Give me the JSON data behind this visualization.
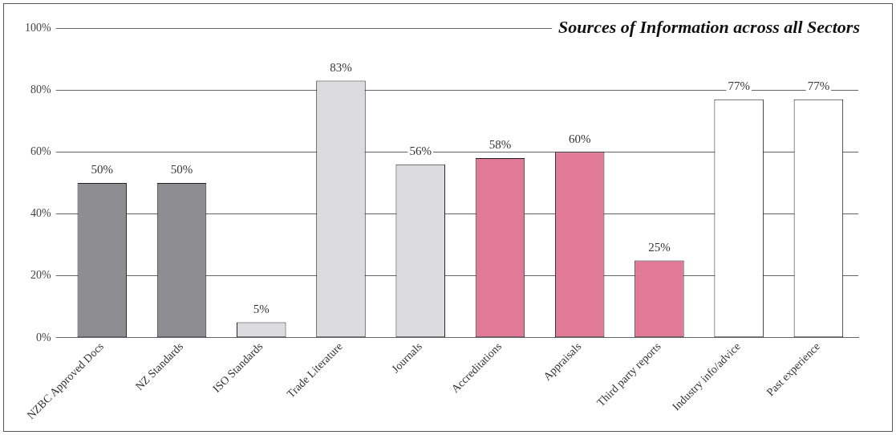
{
  "chart_data": {
    "type": "bar",
    "title": "Sources of Information across all Sectors",
    "categories": [
      "NZBC Approved Docs",
      "NZ Standards",
      "ISO Standards",
      "Trade Literature",
      "Journals",
      "Accreditations",
      "Appraisals",
      "Third party reports",
      "Industry info/advice",
      "Past experience"
    ],
    "values": [
      50,
      50,
      5,
      83,
      56,
      58,
      60,
      25,
      77,
      77
    ],
    "colors": [
      "#8e8e92",
      "#8e8e92",
      "#dcdcde",
      "#dcdcde",
      "#dcdcde",
      "#e07a96",
      "#e07a96",
      "#e07a96",
      "#ffffff",
      "#ffffff"
    ],
    "value_labels": [
      "50%",
      "50%",
      "5%",
      "83%",
      "56%",
      "58%",
      "60%",
      "25%",
      "77%",
      "77%"
    ],
    "ylim": [
      0,
      100
    ],
    "yticks": [
      {
        "value": 0,
        "label": "0%"
      },
      {
        "value": 20,
        "label": "20%"
      },
      {
        "value": 40,
        "label": "40%"
      },
      {
        "value": 60,
        "label": "60%"
      },
      {
        "value": 80,
        "label": "80%"
      },
      {
        "value": 100,
        "label": "100%"
      }
    ],
    "grid": "y",
    "legend": false
  }
}
